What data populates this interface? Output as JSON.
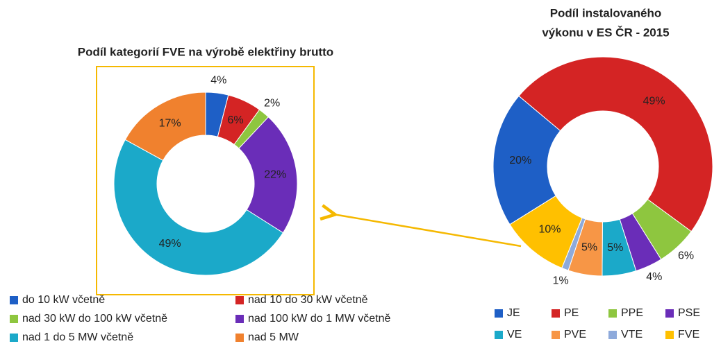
{
  "chart_data": [
    {
      "type": "pie",
      "title": "Podíl kategorií FVE na výrobě elektřiny brutto",
      "categories": [
        "do 10 kW včetně",
        "nad 10 do 30 kW včetně",
        "nad 30 kW do 100 kW včetně",
        "nad 100 kW do 1 MW včetně",
        "nad 1 do 5 MW včetně",
        "nad 5 MW"
      ],
      "values": [
        4,
        6,
        2,
        22,
        49,
        17
      ],
      "value_labels": [
        "4%",
        "6%",
        "2%",
        "22%",
        "49%",
        "17%"
      ],
      "colors": [
        "#1e5fc6",
        "#d42424",
        "#8ec63f",
        "#6a2db8",
        "#1ba9c9",
        "#f0812e"
      ]
    },
    {
      "type": "pie",
      "title": [
        "Podíl instalovaného",
        "výkonu v ES ČR - 2015"
      ],
      "categories": [
        "JE",
        "PE",
        "PPE",
        "PSE",
        "VE",
        "PVE",
        "VTE",
        "FVE"
      ],
      "values": [
        20,
        49,
        6,
        4,
        5,
        5,
        1,
        10
      ],
      "value_labels": [
        "20%",
        "49%",
        "6%",
        "4%",
        "5%",
        "5%",
        "1%",
        "10%"
      ],
      "colors": [
        "#1e5fc6",
        "#d42424",
        "#8ec63f",
        "#6a2db8",
        "#1ba9c9",
        "#f79646",
        "#8eaadb",
        "#ffc000"
      ]
    }
  ]
}
